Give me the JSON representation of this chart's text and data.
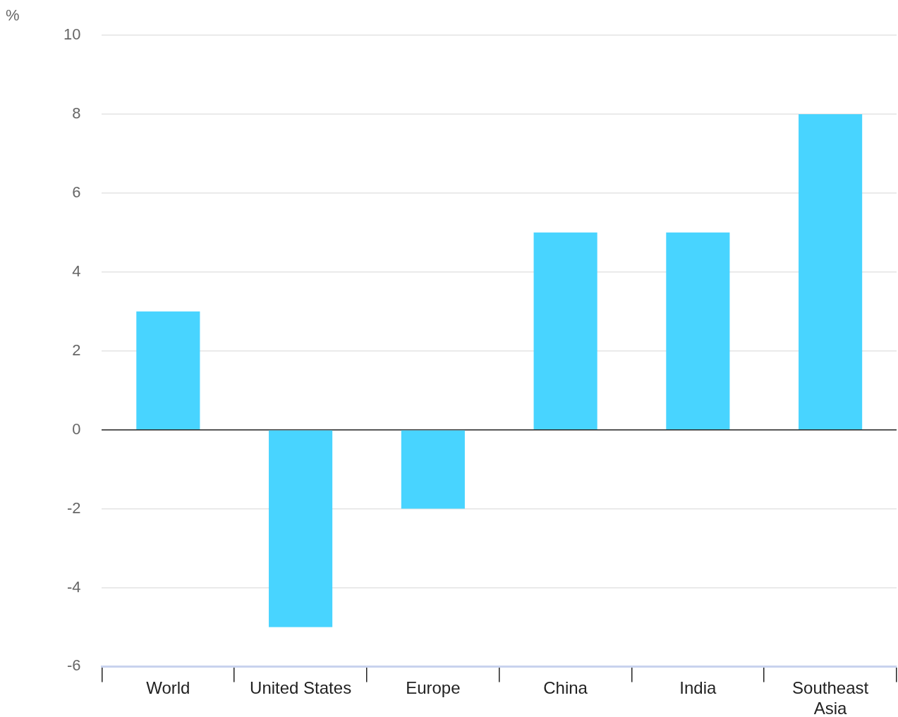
{
  "chart_data": {
    "type": "bar",
    "ylabel": "%",
    "categories": [
      "World",
      "United States",
      "Europe",
      "China",
      "India",
      "Southeast Asia"
    ],
    "values": [
      3,
      -5,
      -2,
      5,
      5,
      8
    ],
    "color": "#48d4ff",
    "ylim": [
      -6,
      10
    ],
    "yticks": [
      -6,
      -4,
      -2,
      0,
      2,
      4,
      6,
      8,
      10
    ],
    "grid": "y",
    "legend": false
  }
}
